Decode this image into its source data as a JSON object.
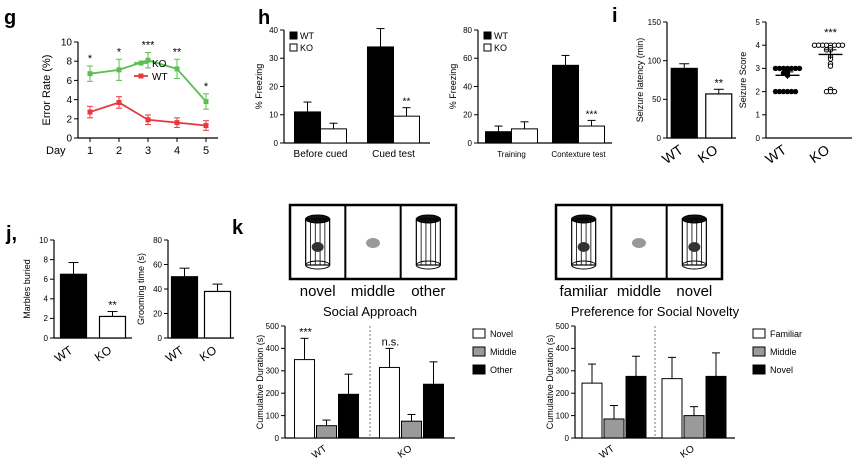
{
  "panels": {
    "g": "g",
    "h": "h",
    "i": "i",
    "j": "j,",
    "k": "k"
  },
  "chart_data": [
    {
      "id": "g",
      "type": "line",
      "x": [
        1,
        2,
        3,
        4,
        5
      ],
      "xlabel": "Day",
      "ylabel": "Error Rate (%)",
      "ylim": [
        0,
        10
      ],
      "yticks": [
        0,
        2,
        4,
        6,
        8,
        10
      ],
      "xticks": [
        "1",
        "2",
        "3",
        "4",
        "5"
      ],
      "series": [
        {
          "name": "KO",
          "color": "#5bbf4f",
          "values": [
            6.7,
            7.1,
            8.1,
            7.2,
            3.8
          ],
          "err": [
            0.8,
            1.1,
            0.8,
            1.0,
            0.8
          ]
        },
        {
          "name": "WT",
          "color": "#e8383d",
          "values": [
            2.7,
            3.7,
            1.9,
            1.6,
            1.3
          ],
          "err": [
            0.6,
            0.6,
            0.5,
            0.5,
            0.5
          ]
        }
      ],
      "sig": [
        "*",
        "*",
        "***",
        "**",
        "*"
      ],
      "legend": "top-right"
    },
    {
      "id": "h1",
      "type": "bar",
      "categories": [
        "Before cued",
        "Cued test"
      ],
      "ylabel": "% Freezing",
      "ylim": [
        0,
        40
      ],
      "yticks": [
        0,
        10,
        20,
        30,
        40
      ],
      "series": [
        {
          "name": "WT",
          "values": [
            11,
            34
          ],
          "err": [
            3.5,
            6.5
          ]
        },
        {
          "name": "KO",
          "values": [
            5,
            9.5
          ],
          "err": [
            2,
            3
          ]
        }
      ],
      "sig": [
        "",
        "**"
      ],
      "legend": "top-left"
    },
    {
      "id": "h2",
      "type": "bar",
      "categories": [
        "Training",
        "Contexture test"
      ],
      "ylabel": "% Freezing",
      "ylim": [
        0,
        80
      ],
      "yticks": [
        0,
        20,
        40,
        60,
        80
      ],
      "series": [
        {
          "name": "WT",
          "values": [
            8,
            55
          ],
          "err": [
            4,
            7
          ]
        },
        {
          "name": "KO",
          "values": [
            10,
            12
          ],
          "err": [
            5,
            4
          ]
        }
      ],
      "sig": [
        "",
        "***"
      ],
      "legend": "top-left"
    },
    {
      "id": "i1",
      "type": "bar",
      "categories": [
        "WT",
        "KO"
      ],
      "ylabel": "Seizure latency (min)",
      "ylim": [
        0,
        150
      ],
      "yticks": [
        0,
        50,
        100,
        150
      ],
      "values": [
        90,
        57
      ],
      "err": [
        6,
        6
      ],
      "sig": [
        "",
        "**"
      ]
    },
    {
      "id": "i2",
      "type": "scatter",
      "categories": [
        "WT",
        "KO"
      ],
      "ylabel": "Seizure Score",
      "ylim": [
        0,
        5
      ],
      "yticks": [
        0,
        1,
        2,
        3,
        4,
        5
      ],
      "points": [
        [
          3,
          3,
          3,
          3,
          3,
          3,
          3,
          2.9,
          2.8,
          2.8,
          2.7,
          2,
          2,
          2,
          2,
          2,
          2
        ],
        [
          4,
          4,
          4,
          4,
          4,
          4,
          4,
          4,
          3.9,
          3.8,
          3.8,
          3.5,
          3.4,
          3.2,
          3.1,
          2.1,
          2,
          2,
          2
        ]
      ],
      "means": [
        2.7,
        3.6
      ],
      "sem": [
        0.15,
        0.2
      ],
      "sig": [
        "",
        "***"
      ]
    },
    {
      "id": "j1",
      "type": "bar",
      "categories": [
        "WT",
        "KO"
      ],
      "ylabel": "Marbles buried",
      "ylim": [
        0,
        10
      ],
      "yticks": [
        0,
        2,
        4,
        6,
        8,
        10
      ],
      "values": [
        6.5,
        2.2
      ],
      "err": [
        1.2,
        0.5
      ],
      "sig": [
        "",
        "**"
      ]
    },
    {
      "id": "j2",
      "type": "bar",
      "categories": [
        "WT",
        "KO"
      ],
      "ylabel": "Grooming time (s)",
      "ylim": [
        0,
        80
      ],
      "yticks": [
        0,
        20,
        40,
        60,
        80
      ],
      "values": [
        50,
        38
      ],
      "err": [
        7,
        6
      ]
    },
    {
      "id": "k1",
      "type": "bar",
      "title": "Social Approach",
      "arena_labels": [
        "novel",
        "middle",
        "other"
      ],
      "categories": [
        "WT",
        "KO"
      ],
      "ylabel": "Cumulative Duration (s)",
      "ylim": [
        0,
        500
      ],
      "yticks": [
        0,
        100,
        200,
        300,
        400,
        500
      ],
      "series": [
        {
          "name": "Novel",
          "color": "#ffffff",
          "values": [
            350,
            315
          ],
          "err": [
            95,
            85
          ]
        },
        {
          "name": "Middle",
          "color": "#9a9a9a",
          "values": [
            55,
            75
          ],
          "err": [
            25,
            30
          ]
        },
        {
          "name": "Other",
          "color": "#000000",
          "values": [
            195,
            240
          ],
          "err": [
            90,
            100
          ]
        }
      ],
      "sig": [
        "***",
        "n.s."
      ],
      "legend": "right"
    },
    {
      "id": "k2",
      "type": "bar",
      "title": "Preference for Social Novelty",
      "arena_labels": [
        "familiar",
        "middle",
        "novel"
      ],
      "categories": [
        "WT",
        "KO"
      ],
      "ylabel": "Cumulative Duration (s)",
      "ylim": [
        0,
        500
      ],
      "yticks": [
        0,
        100,
        200,
        300,
        400,
        500
      ],
      "series": [
        {
          "name": "Familiar",
          "color": "#ffffff",
          "values": [
            245,
            265
          ],
          "err": [
            85,
            95
          ]
        },
        {
          "name": "Middle",
          "color": "#9a9a9a",
          "values": [
            85,
            100
          ],
          "err": [
            60,
            40
          ]
        },
        {
          "name": "Novel",
          "color": "#000000",
          "values": [
            275,
            275
          ],
          "err": [
            90,
            105
          ]
        }
      ],
      "legend": "right"
    }
  ]
}
